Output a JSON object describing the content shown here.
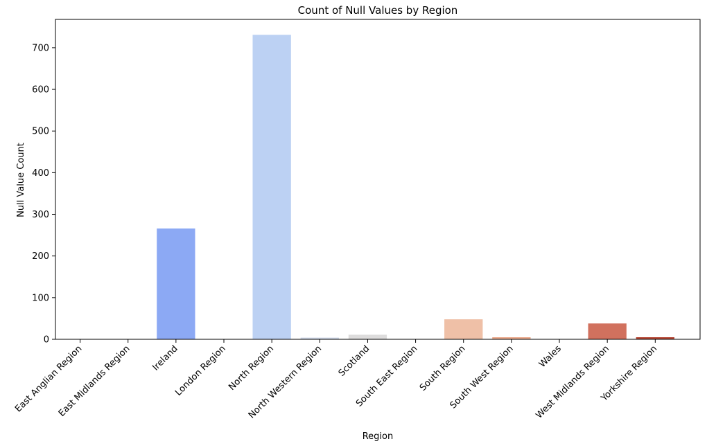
{
  "chart_data": {
    "type": "bar",
    "title": "Count of Null Values by Region",
    "xlabel": "Region",
    "ylabel": "Null Value Count",
    "ylim": [
      0,
      768
    ],
    "yticks": [
      0,
      100,
      200,
      300,
      400,
      500,
      600,
      700
    ],
    "grid": false,
    "categories": [
      "East Anglian Region",
      "East Midlands Region",
      "Ireland",
      "London Region",
      "North Region",
      "North Western Region",
      "Scotland",
      "South East Region",
      "South Region",
      "South West Region",
      "Wales",
      "West Midlands Region",
      "Yorkshire Region"
    ],
    "values": [
      0,
      0,
      266,
      0,
      731,
      4,
      11,
      0,
      48,
      5,
      0,
      38,
      5
    ],
    "colors": [
      "#3b4cc0",
      "#536edd",
      "#8ca9f4",
      "#a7c3fb",
      "#bcd1f3",
      "#cfd8e8",
      "#dddcdc",
      "#ecd2c3",
      "#efc0a7",
      "#ebaa8c",
      "#e48b6a",
      "#d1715e",
      "#b64734"
    ]
  }
}
